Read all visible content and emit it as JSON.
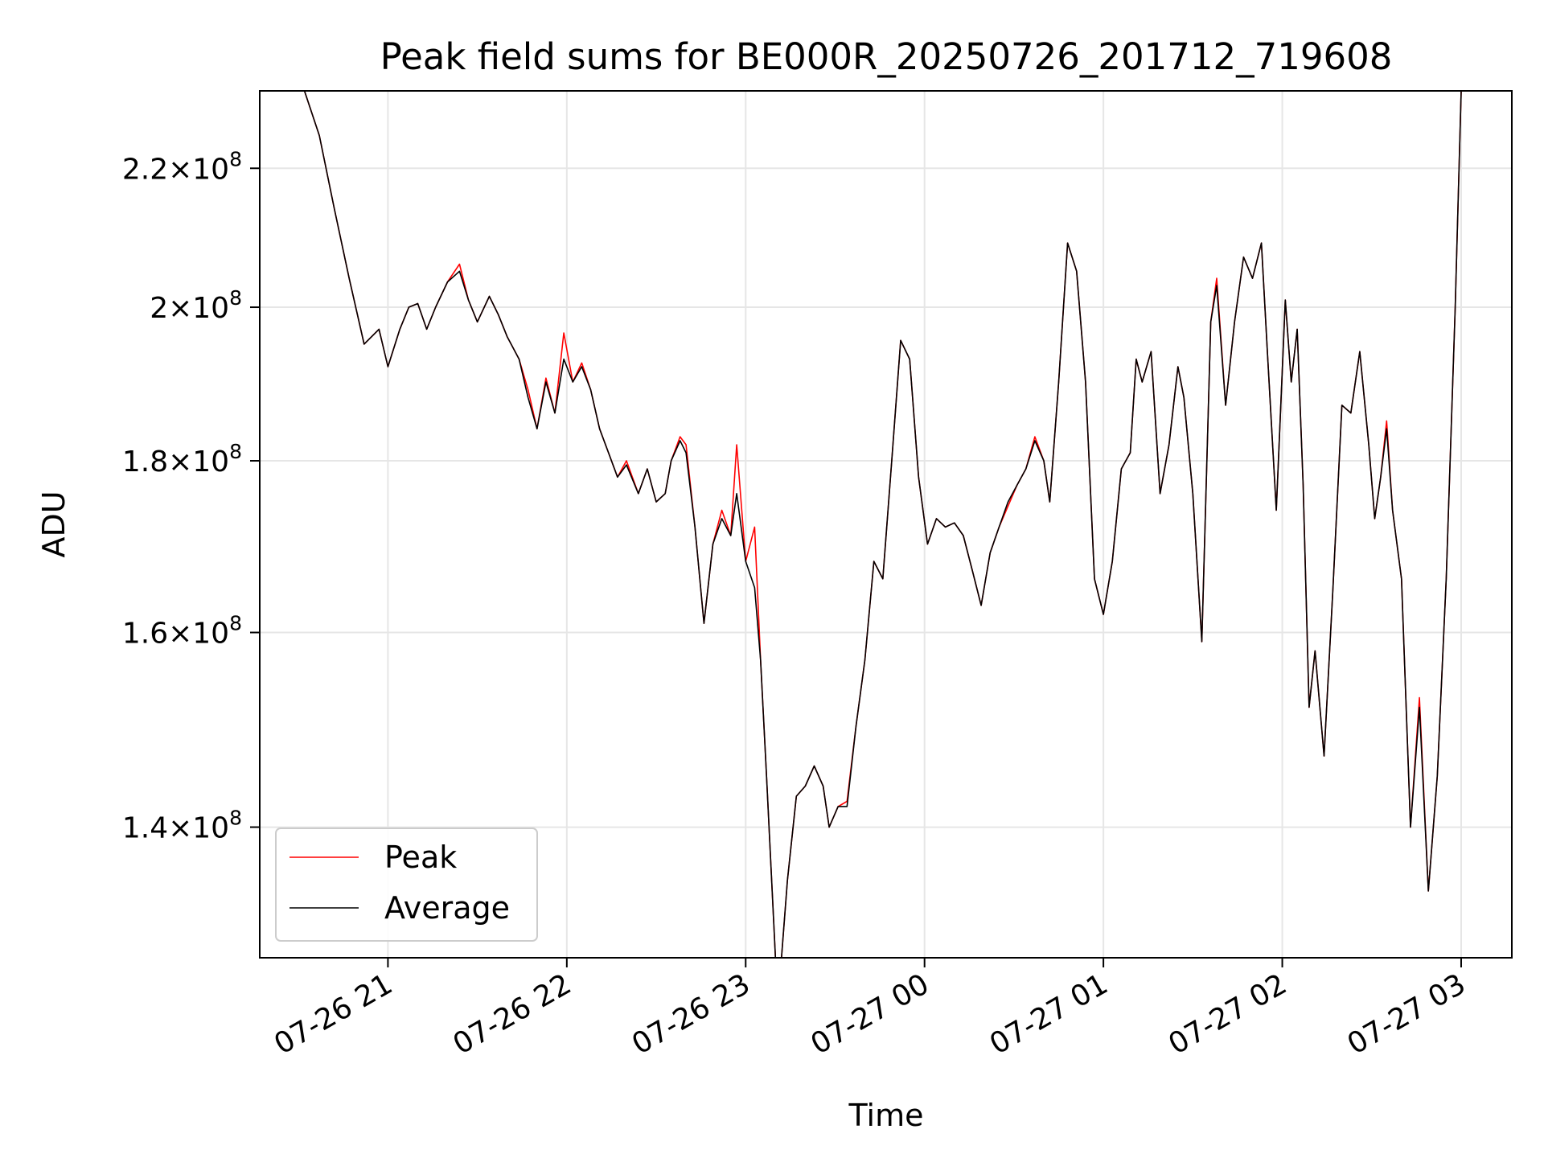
{
  "chart_data": {
    "type": "line",
    "title": "Peak field sums for BE000R_20250726_201712_719608",
    "xlabel": "Time",
    "ylabel": "ADU",
    "yscale": "log",
    "xlim": [
      "2025-07-26 20:17",
      "2025-07-27 03:17"
    ],
    "ylim": [
      128000000,
      232000000
    ],
    "grid": true,
    "legend_position": "lower-left",
    "x_ticks": [
      {
        "value": "2025-07-26 21:00",
        "label": "07-26 21"
      },
      {
        "value": "2025-07-26 22:00",
        "label": "07-26 22"
      },
      {
        "value": "2025-07-26 23:00",
        "label": "07-26 23"
      },
      {
        "value": "2025-07-27 00:00",
        "label": "07-27 00"
      },
      {
        "value": "2025-07-27 01:00",
        "label": "07-27 01"
      },
      {
        "value": "2025-07-27 02:00",
        "label": "07-27 02"
      },
      {
        "value": "2025-07-27 03:00",
        "label": "07-27 03"
      }
    ],
    "y_ticks": [
      {
        "value": 140000000,
        "mantissa": "1.4",
        "exp": "8"
      },
      {
        "value": 160000000,
        "mantissa": "1.6",
        "exp": "8"
      },
      {
        "value": 180000000,
        "mantissa": "1.8",
        "exp": "8"
      },
      {
        "value": 200000000,
        "mantissa": "2",
        "exp": "8"
      },
      {
        "value": 220000000,
        "mantissa": "2.2",
        "exp": "8"
      }
    ],
    "x": [
      "2025-07-26 20:17",
      "2025-07-26 20:32",
      "2025-07-26 20:37",
      "2025-07-26 20:42",
      "2025-07-26 20:47",
      "2025-07-26 20:52",
      "2025-07-26 20:57",
      "2025-07-26 21:00",
      "2025-07-26 21:04",
      "2025-07-26 21:07",
      "2025-07-26 21:10",
      "2025-07-26 21:13",
      "2025-07-26 21:16",
      "2025-07-26 21:20",
      "2025-07-26 21:24",
      "2025-07-26 21:27",
      "2025-07-26 21:30",
      "2025-07-26 21:34",
      "2025-07-26 21:37",
      "2025-07-26 21:40",
      "2025-07-26 21:44",
      "2025-07-26 21:47",
      "2025-07-26 21:50",
      "2025-07-26 21:53",
      "2025-07-26 21:56",
      "2025-07-26 21:59",
      "2025-07-26 22:02",
      "2025-07-26 22:05",
      "2025-07-26 22:08",
      "2025-07-26 22:11",
      "2025-07-26 22:14",
      "2025-07-26 22:17",
      "2025-07-26 22:20",
      "2025-07-26 22:24",
      "2025-07-26 22:27",
      "2025-07-26 22:30",
      "2025-07-26 22:33",
      "2025-07-26 22:35",
      "2025-07-26 22:38",
      "2025-07-26 22:40",
      "2025-07-26 22:43",
      "2025-07-26 22:46",
      "2025-07-26 22:49",
      "2025-07-26 22:52",
      "2025-07-26 22:55",
      "2025-07-26 22:57",
      "2025-07-26 23:00",
      "2025-07-26 23:03",
      "2025-07-26 23:05",
      "2025-07-26 23:07",
      "2025-07-26 23:10",
      "2025-07-26 23:12",
      "2025-07-26 23:14",
      "2025-07-26 23:17",
      "2025-07-26 23:20",
      "2025-07-26 23:23",
      "2025-07-26 23:26",
      "2025-07-26 23:28",
      "2025-07-26 23:31",
      "2025-07-26 23:34",
      "2025-07-26 23:37",
      "2025-07-26 23:40",
      "2025-07-26 23:43",
      "2025-07-26 23:46",
      "2025-07-26 23:49",
      "2025-07-26 23:52",
      "2025-07-26 23:55",
      "2025-07-26 23:58",
      "2025-07-27 00:01",
      "2025-07-27 00:04",
      "2025-07-27 00:07",
      "2025-07-27 00:10",
      "2025-07-27 00:13",
      "2025-07-27 00:16",
      "2025-07-27 00:19",
      "2025-07-27 00:22",
      "2025-07-27 00:25",
      "2025-07-27 00:28",
      "2025-07-27 00:31",
      "2025-07-27 00:34",
      "2025-07-27 00:37",
      "2025-07-27 00:40",
      "2025-07-27 00:42",
      "2025-07-27 00:45",
      "2025-07-27 00:48",
      "2025-07-27 00:51",
      "2025-07-27 00:54",
      "2025-07-27 00:57",
      "2025-07-27 01:00",
      "2025-07-27 01:03",
      "2025-07-27 01:06",
      "2025-07-27 01:09",
      "2025-07-27 01:11",
      "2025-07-27 01:13",
      "2025-07-27 01:16",
      "2025-07-27 01:19",
      "2025-07-27 01:22",
      "2025-07-27 01:25",
      "2025-07-27 01:27",
      "2025-07-27 01:30",
      "2025-07-27 01:33",
      "2025-07-27 01:36",
      "2025-07-27 01:38",
      "2025-07-27 01:41",
      "2025-07-27 01:44",
      "2025-07-27 01:47",
      "2025-07-27 01:50",
      "2025-07-27 01:53",
      "2025-07-27 01:55",
      "2025-07-27 01:58",
      "2025-07-27 02:01",
      "2025-07-27 02:03",
      "2025-07-27 02:05",
      "2025-07-27 02:07",
      "2025-07-27 02:09",
      "2025-07-27 02:11",
      "2025-07-27 02:14",
      "2025-07-27 02:17",
      "2025-07-27 02:20",
      "2025-07-27 02:23",
      "2025-07-27 02:26",
      "2025-07-27 02:29",
      "2025-07-27 02:31",
      "2025-07-27 02:33",
      "2025-07-27 02:35",
      "2025-07-27 02:37",
      "2025-07-27 02:40",
      "2025-07-27 02:43",
      "2025-07-27 02:46",
      "2025-07-27 02:49",
      "2025-07-27 02:52",
      "2025-07-27 02:55",
      "2025-07-27 02:58",
      "2025-07-27 03:00",
      "2025-07-27 03:17"
    ],
    "series": [
      {
        "name": "Average",
        "color": "#000000",
        "values": [
          232000000,
          232000000,
          225000000,
          214000000,
          204000000,
          195000000,
          197000000,
          192000000,
          197000000,
          200000000,
          200500000,
          197000000,
          200000000,
          203500000,
          205000000,
          201000000,
          198000000,
          201500000,
          199000000,
          196000000,
          193000000,
          188000000,
          184000000,
          190000000,
          186000000,
          193000000,
          190000000,
          192000000,
          189000000,
          184000000,
          181000000,
          178000000,
          179500000,
          176000000,
          179000000,
          175000000,
          176000000,
          180000000,
          182500000,
          181000000,
          172000000,
          161000000,
          170000000,
          173000000,
          171000000,
          176000000,
          168000000,
          165000000,
          157000000,
          145000000,
          128000000,
          126000000,
          135000000,
          143000000,
          144000000,
          146000000,
          144000000,
          140000000,
          142000000,
          142000000,
          150000000,
          157000000,
          168000000,
          166000000,
          180000000,
          195500000,
          193000000,
          178000000,
          170000000,
          173000000,
          172000000,
          172500000,
          171000000,
          167000000,
          163000000,
          169000000,
          172000000,
          175000000,
          177000000,
          179000000,
          182500000,
          180000000,
          175000000,
          190000000,
          209000000,
          205000000,
          190000000,
          166000000,
          162000000,
          168000000,
          179000000,
          181000000,
          193000000,
          190000000,
          194000000,
          176000000,
          182000000,
          192000000,
          188000000,
          176000000,
          159000000,
          198000000,
          203000000,
          187000000,
          198000000,
          207000000,
          204000000,
          209000000,
          194000000,
          174000000,
          201000000,
          190000000,
          197000000,
          177000000,
          152000000,
          158000000,
          147000000,
          165000000,
          187000000,
          186000000,
          194000000,
          182000000,
          173000000,
          178000000,
          184000000,
          174000000,
          166000000,
          140000000,
          152000000,
          134000000,
          145000000,
          166000000,
          200000000,
          232000000,
          232000000
        ]
      },
      {
        "name": "Peak",
        "color": "#ff0000",
        "values": [
          232000000,
          232000000,
          225000000,
          214000000,
          204000000,
          195000000,
          197000000,
          192000000,
          197000000,
          200000000,
          200500000,
          197000000,
          200000000,
          203500000,
          206000000,
          201000000,
          198000000,
          201500000,
          199000000,
          196000000,
          193000000,
          189000000,
          184000000,
          190500000,
          186000000,
          196500000,
          190000000,
          192500000,
          189000000,
          184000000,
          181000000,
          178000000,
          180000000,
          176000000,
          179000000,
          175000000,
          176000000,
          180000000,
          183000000,
          182000000,
          172000000,
          161000000,
          170000000,
          174000000,
          171000000,
          182000000,
          168000000,
          172000000,
          157000000,
          145000000,
          128000000,
          126000000,
          135000000,
          143000000,
          144000000,
          146000000,
          144000000,
          140000000,
          142000000,
          142500000,
          150000000,
          157000000,
          168000000,
          166000000,
          180000000,
          195500000,
          193000000,
          178000000,
          170000000,
          173000000,
          172000000,
          172500000,
          171000000,
          167000000,
          163000000,
          169000000,
          172000000,
          174500000,
          177000000,
          179000000,
          183000000,
          180000000,
          175000000,
          190000000,
          209000000,
          205000000,
          190000000,
          166000000,
          162000000,
          168000000,
          179000000,
          181000000,
          193000000,
          190000000,
          194000000,
          176000000,
          182000000,
          192000000,
          188000000,
          176000000,
          159000000,
          198000000,
          204000000,
          187000000,
          198000000,
          207000000,
          204000000,
          209000000,
          194000000,
          174000000,
          201000000,
          190000000,
          197000000,
          177000000,
          152000000,
          158000000,
          147000000,
          165000000,
          187000000,
          186000000,
          194000000,
          182000000,
          173000000,
          178000000,
          185000000,
          174000000,
          166000000,
          140000000,
          153000000,
          134000000,
          145000000,
          166000000,
          200000000,
          232000000,
          232000000
        ]
      }
    ],
    "legend": [
      {
        "label": "Peak",
        "color": "#ff0000"
      },
      {
        "label": "Average",
        "color": "#000000"
      }
    ]
  }
}
